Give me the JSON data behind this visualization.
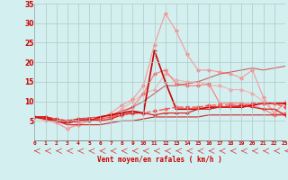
{
  "x": [
    0,
    1,
    2,
    3,
    4,
    5,
    6,
    7,
    8,
    9,
    10,
    11,
    12,
    13,
    14,
    15,
    16,
    17,
    18,
    19,
    20,
    21,
    22,
    23
  ],
  "series": [
    {
      "color": "#ff8888",
      "alpha": 0.85,
      "linewidth": 0.8,
      "marker": "D",
      "markersize": 2.0,
      "values": [
        6,
        5.5,
        4.5,
        3.0,
        4.0,
        5.0,
        5.5,
        7.0,
        9.0,
        10.5,
        14.0,
        24.5,
        32.5,
        28.0,
        22.0,
        18.0,
        18.0,
        17.5,
        17.0,
        16.0,
        18.0,
        11.0,
        7.0,
        9.5
      ],
      "linestyle": "-"
    },
    {
      "color": "#ff9999",
      "alpha": 0.7,
      "linewidth": 0.8,
      "marker": "D",
      "markersize": 2.0,
      "values": [
        6,
        5.0,
        4.5,
        3.0,
        4.5,
        5.5,
        5.0,
        6.0,
        8.0,
        10.0,
        12.0,
        13.0,
        17.0,
        15.5,
        15.0,
        15.0,
        14.0,
        14.0,
        13.0,
        13.0,
        12.0,
        10.0,
        7.0,
        10.0
      ],
      "linestyle": "-"
    },
    {
      "color": "#ff6666",
      "alpha": 0.85,
      "linewidth": 0.8,
      "marker": "D",
      "markersize": 2.0,
      "values": [
        6,
        6.0,
        5.0,
        4.5,
        5.0,
        5.0,
        5.5,
        6.0,
        7.0,
        8.5,
        12.0,
        17.0,
        18.0,
        14.5,
        14.0,
        14.0,
        14.5,
        9.5,
        9.5,
        9.5,
        9.0,
        8.0,
        6.5,
        7.0
      ],
      "linestyle": "-"
    },
    {
      "color": "#cc0000",
      "alpha": 1.0,
      "linewidth": 1.2,
      "marker": "+",
      "markersize": 3.5,
      "values": [
        6,
        5.5,
        5.0,
        4.5,
        5.0,
        5.0,
        6.0,
        6.5,
        7.0,
        7.5,
        7.0,
        23.0,
        15.0,
        8.0,
        8.0,
        8.0,
        8.5,
        8.5,
        8.5,
        8.5,
        9.0,
        9.5,
        9.5,
        9.5
      ],
      "linestyle": "-"
    },
    {
      "color": "#ff4444",
      "alpha": 0.9,
      "linewidth": 1.0,
      "marker": "D",
      "markersize": 2.0,
      "values": [
        6,
        6.0,
        5.5,
        5.0,
        5.5,
        5.5,
        5.5,
        6.0,
        6.5,
        7.0,
        7.0,
        7.5,
        8.0,
        8.5,
        8.5,
        8.5,
        9.0,
        9.0,
        9.0,
        9.0,
        9.5,
        9.5,
        9.5,
        8.5
      ],
      "linestyle": "--"
    },
    {
      "color": "#dd2222",
      "alpha": 1.0,
      "linewidth": 0.9,
      "marker": "+",
      "markersize": 3.0,
      "values": [
        6,
        6.0,
        5.0,
        4.5,
        5.0,
        5.5,
        5.0,
        5.5,
        6.5,
        7.0,
        7.0,
        6.5,
        7.0,
        7.0,
        7.0,
        8.0,
        8.0,
        8.5,
        8.5,
        9.0,
        8.5,
        8.0,
        8.0,
        6.5
      ],
      "linestyle": "-"
    },
    {
      "color": "#cc2222",
      "alpha": 1.0,
      "linewidth": 0.8,
      "marker": null,
      "markersize": 0,
      "values": [
        6,
        5.5,
        5.0,
        4.0,
        4.0,
        4.0,
        4.0,
        4.5,
        5.0,
        5.0,
        5.5,
        6.0,
        6.0,
        6.0,
        6.0,
        6.0,
        6.5,
        6.5,
        6.5,
        6.5,
        6.5,
        6.5,
        6.5,
        6.5
      ],
      "linestyle": "-"
    },
    {
      "color": "#cc0000",
      "alpha": 0.6,
      "linewidth": 0.8,
      "marker": null,
      "markersize": 0,
      "values": [
        6,
        6.0,
        5.5,
        5.0,
        5.5,
        5.8,
        6.0,
        6.5,
        7.5,
        8.5,
        10.0,
        12.0,
        14.0,
        14.0,
        14.5,
        15.0,
        16.0,
        17.0,
        17.5,
        18.0,
        18.5,
        18.0,
        18.5,
        19.0
      ],
      "linestyle": "-"
    }
  ],
  "xlabel": "Vent moyen/en rafales ( km/h )",
  "xlim": [
    0,
    23
  ],
  "ylim": [
    0,
    35
  ],
  "yticks": [
    0,
    5,
    10,
    15,
    20,
    25,
    30,
    35
  ],
  "xticks": [
    0,
    1,
    2,
    3,
    4,
    5,
    6,
    7,
    8,
    9,
    10,
    11,
    12,
    13,
    14,
    15,
    16,
    17,
    18,
    19,
    20,
    21,
    22,
    23
  ],
  "background_color": "#d4efef",
  "grid_color": "#b0c8c8",
  "tick_color": "#cc0000",
  "label_color": "#cc0000",
  "arrow_color": "#cc3333",
  "fig_width": 3.2,
  "fig_height": 2.0,
  "dpi": 100
}
